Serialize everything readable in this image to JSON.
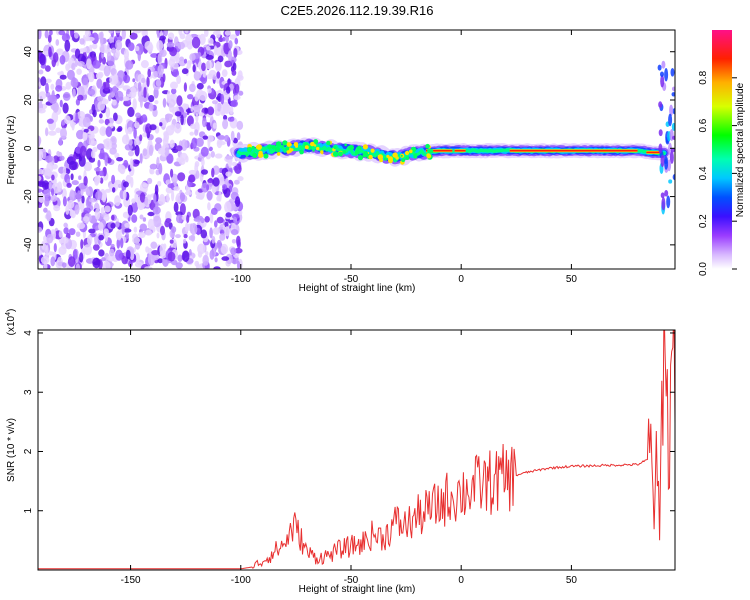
{
  "title": "C2E5.2026.112.19.39.R16",
  "chart_data": [
    {
      "type": "heatmap",
      "xlabel": "Height of straight line (km)",
      "ylabel": "Frequency (Hz)",
      "xlim": [
        -192,
        97
      ],
      "ylim": [
        -50,
        49
      ],
      "xticks": [
        -150,
        -100,
        -50,
        0,
        50
      ],
      "yticks": [
        -40,
        -20,
        0,
        20,
        40
      ],
      "colorbar": {
        "label": "Normalized spectral amplitude",
        "ticks": [
          "0.0",
          "0.2",
          "0.4",
          "0.6",
          "0.8"
        ],
        "range": [
          0,
          1
        ],
        "colors": [
          "#ffffff",
          "#c8a0ff",
          "#8a2be2",
          "#3a00ff",
          "#0040ff",
          "#00c8ff",
          "#00ffa0",
          "#00ff00",
          "#ffff00",
          "#ff8000",
          "#ff0000",
          "#ff0080"
        ]
      },
      "ridge": {
        "description_values": [
          {
            "x": -100,
            "y": -2
          },
          {
            "x": -90,
            "y": -1
          },
          {
            "x": -80,
            "y": 0
          },
          {
            "x": -70,
            "y": 1
          },
          {
            "x": -60,
            "y": 0
          },
          {
            "x": -50,
            "y": -1
          },
          {
            "x": -40,
            "y": -2
          },
          {
            "x": -30,
            "y": -4
          },
          {
            "x": -20,
            "y": -2
          },
          {
            "x": -10,
            "y": -1
          },
          {
            "x": 0,
            "y": -1
          },
          {
            "x": 20,
            "y": -1
          },
          {
            "x": 50,
            "y": -1
          },
          {
            "x": 80,
            "y": -1
          },
          {
            "x": 90,
            "y": -2
          }
        ]
      }
    },
    {
      "type": "line",
      "xlabel": "Height of straight line (km)",
      "ylabel": "SNR (10 * v/v)",
      "yscale_label": "(x10",
      "yscale_exp": "4",
      "xlim": [
        -192,
        97
      ],
      "ylim": [
        0,
        4.05
      ],
      "xticks": [
        -150,
        -100,
        -50,
        0,
        50
      ],
      "yticks": [
        1,
        2,
        3,
        4
      ],
      "color": "#e83030",
      "series": [
        {
          "x": [
            -192,
            -150,
            -100,
            -95,
            -90,
            -85,
            -80,
            -76,
            -73,
            -70,
            -65,
            -60,
            -55,
            -50,
            -45,
            -40,
            -35,
            -30,
            -25,
            -20,
            -15,
            -10,
            -5,
            0,
            5,
            10,
            15,
            20,
            25,
            30,
            40,
            50,
            60,
            70,
            80,
            84,
            86,
            88,
            90,
            91,
            92,
            93,
            94,
            95,
            96
          ],
          "y": [
            0.02,
            0.02,
            0.02,
            0.05,
            0.15,
            0.3,
            0.45,
            0.75,
            0.55,
            0.3,
            0.2,
            0.25,
            0.35,
            0.4,
            0.45,
            0.6,
            0.55,
            0.8,
            0.75,
            0.9,
            1.0,
            1.1,
            1.25,
            1.3,
            1.4,
            1.45,
            1.5,
            1.55,
            1.6,
            1.65,
            1.72,
            1.75,
            1.76,
            1.77,
            1.78,
            1.85,
            1.9,
            1.4,
            0.6,
            2.5,
            4.0,
            3.8,
            1.5,
            3.2,
            3.6
          ]
        }
      ]
    }
  ]
}
